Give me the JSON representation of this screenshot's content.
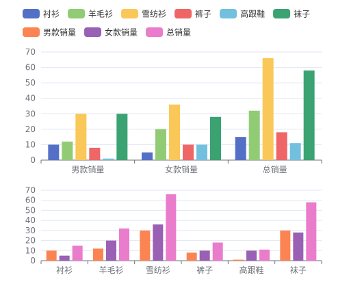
{
  "chart_data": [
    {
      "type": "bar",
      "title": "",
      "xlabel": "",
      "ylabel": "",
      "categories": [
        "男款销量",
        "女款销量",
        "总销量"
      ],
      "ylim": [
        0,
        70
      ],
      "yticks": [
        0,
        10,
        20,
        30,
        40,
        50,
        60,
        70
      ],
      "grid": true,
      "legend": "top",
      "series": [
        {
          "name": "衬衫",
          "color": "#5470c6",
          "values": [
            10,
            5,
            15
          ]
        },
        {
          "name": "羊毛衫",
          "color": "#91cc75",
          "values": [
            12,
            20,
            32
          ]
        },
        {
          "name": "雪纺衫",
          "color": "#fac858",
          "values": [
            30,
            36,
            66
          ]
        },
        {
          "name": "裤子",
          "color": "#ee6666",
          "values": [
            8,
            10,
            18
          ]
        },
        {
          "name": "高跟鞋",
          "color": "#73c0de",
          "values": [
            1,
            10,
            11
          ]
        },
        {
          "name": "袜子",
          "color": "#3ba272",
          "values": [
            30,
            28,
            58
          ]
        }
      ]
    },
    {
      "type": "bar",
      "title": "",
      "xlabel": "",
      "ylabel": "",
      "categories": [
        "衬衫",
        "羊毛衫",
        "雪纺衫",
        "裤子",
        "高跟鞋",
        "袜子"
      ],
      "ylim": [
        0,
        70
      ],
      "yticks": [
        0,
        10,
        20,
        30,
        40,
        50,
        60,
        70
      ],
      "grid": true,
      "legend": "top",
      "series": [
        {
          "name": "男款销量",
          "color": "#fc8452",
          "values": [
            10,
            12,
            30,
            8,
            1,
            30
          ]
        },
        {
          "name": "女款销量",
          "color": "#9a60b4",
          "values": [
            5,
            20,
            36,
            10,
            10,
            28
          ]
        },
        {
          "name": "总销量",
          "color": "#ea7ccc",
          "values": [
            15,
            32,
            66,
            18,
            11,
            58
          ]
        }
      ]
    }
  ]
}
